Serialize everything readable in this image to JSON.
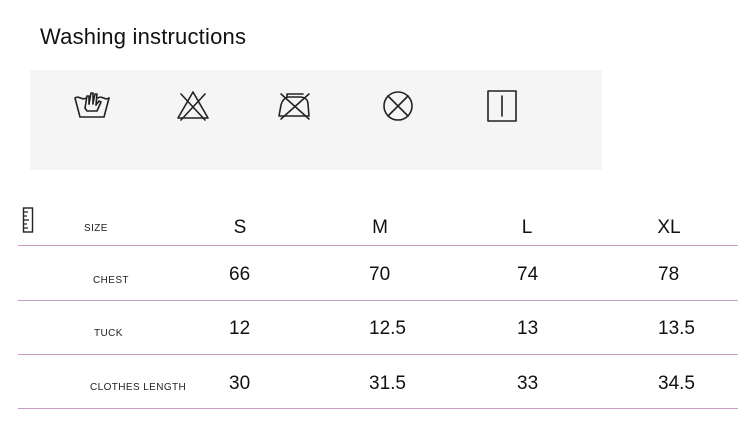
{
  "title": "Washing instructions",
  "care_icons": [
    {
      "name": "hand-wash-icon"
    },
    {
      "name": "do-not-bleach-icon"
    },
    {
      "name": "do-not-iron-icon"
    },
    {
      "name": "do-not-tumble-dry-icon"
    },
    {
      "name": "line-dry-icon"
    }
  ],
  "size_table": {
    "size_label": "SIZE",
    "sizes": [
      "S",
      "M",
      "L",
      "XL"
    ],
    "rows": [
      {
        "label": "CHEST",
        "values": [
          "66",
          "70",
          "74",
          "78"
        ]
      },
      {
        "label": "TUCK",
        "values": [
          "12",
          "12.5",
          "13",
          "13.5"
        ]
      },
      {
        "label": "CLOTHES LENGTH",
        "values": [
          "30",
          "31.5",
          "33",
          "34.5"
        ]
      }
    ],
    "rule_color": "#c79bc4"
  }
}
